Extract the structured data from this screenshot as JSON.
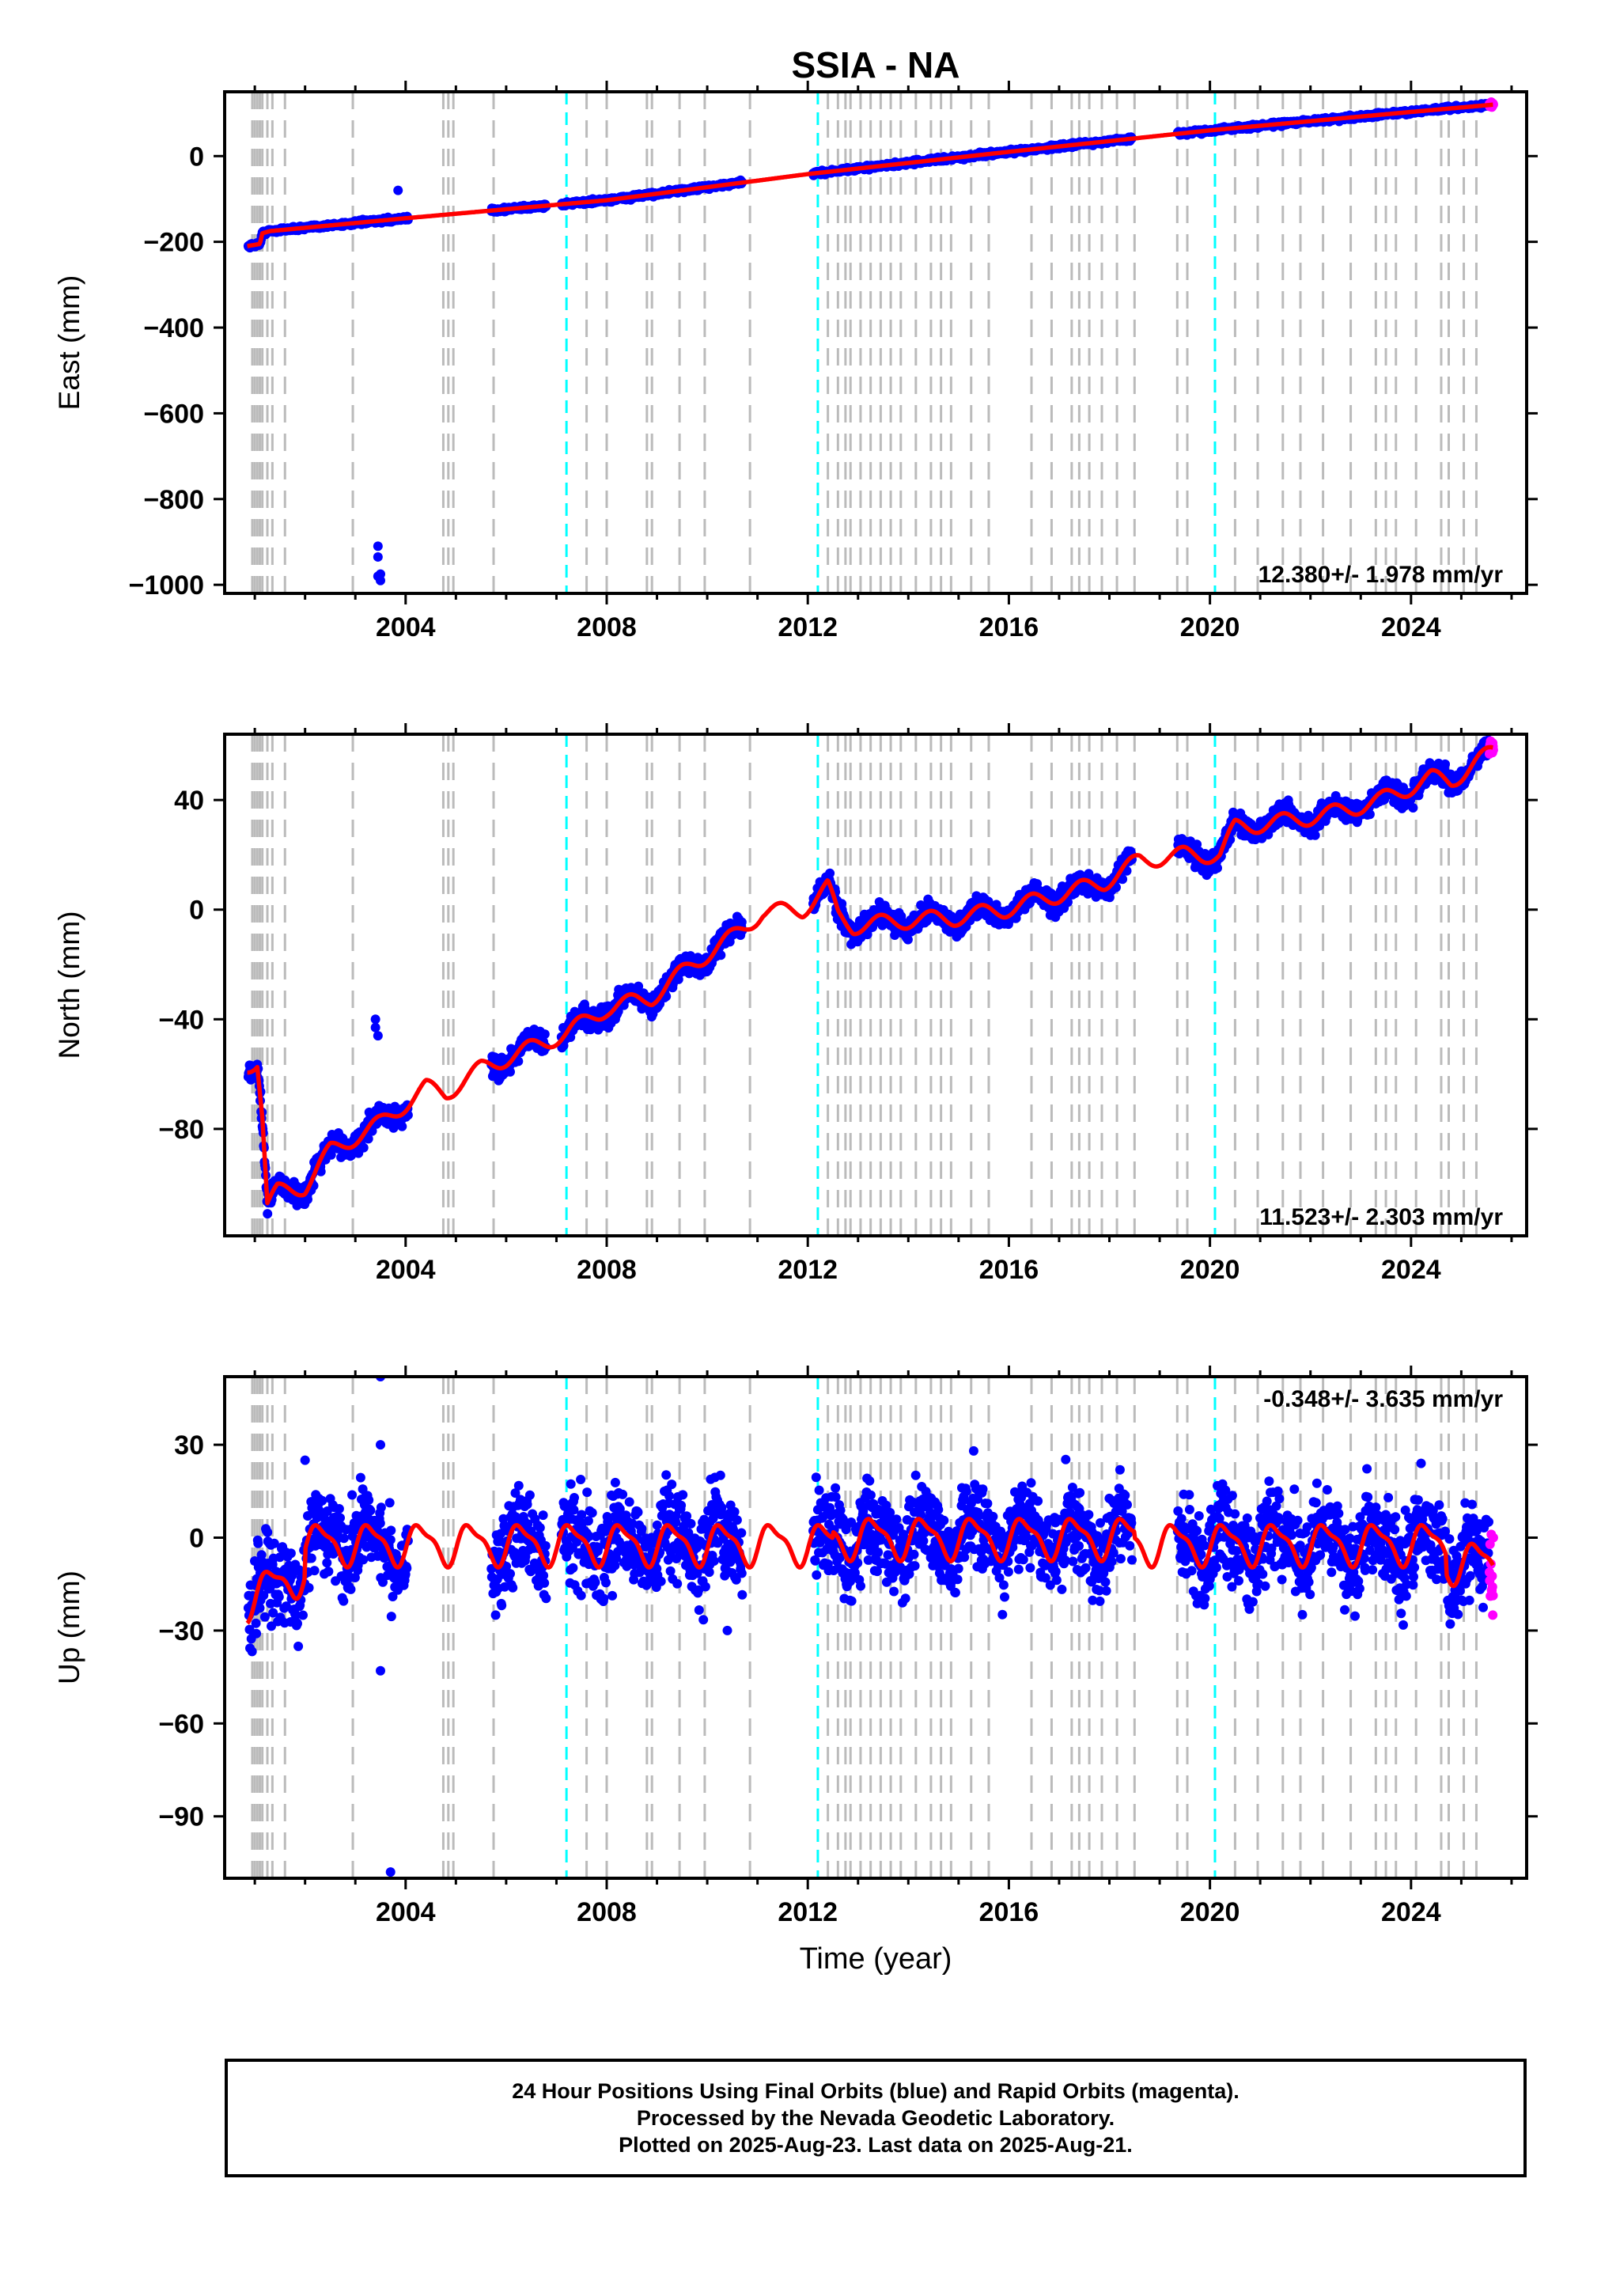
{
  "title": "SSIA - NA",
  "xlabel": "Time (year)",
  "x_ticks": [
    2004,
    2008,
    2012,
    2016,
    2020,
    2024
  ],
  "x_range": [
    2000.4,
    2026.3
  ],
  "colors": {
    "final": "#0000ff",
    "rapid": "#ff00ff",
    "model": "#ff0000",
    "antenna_change": "#00ffff",
    "equipment_change": "#bbbbbb"
  },
  "caption": {
    "line1": "24 Hour Positions Using Final Orbits (blue) and Rapid Orbits (magenta).",
    "line2": "Processed by the Nevada Geodetic Laboratory.",
    "line3": "Plotted on 2025-Aug-23. Last data on 2025-Aug-21."
  },
  "chart_data": [
    {
      "type": "scatter",
      "component": "east",
      "title": "SSIA - NA",
      "xlabel": "",
      "ylabel": "East (mm)",
      "ylim": [
        -1020,
        150
      ],
      "y_ticks": [
        0,
        -200,
        -400,
        -600,
        -800,
        -1000
      ],
      "y_tick_labels": [
        "0",
        "−200",
        "−400",
        "−600",
        "−800",
        "−1000"
      ],
      "rate_label": "12.380+/- 1.978 mm/yr",
      "rate_position": "bottom-right",
      "series": [
        {
          "name": "Final Orbits",
          "color": "#0000ff",
          "x_range": [
            2000.9,
            2025.55
          ],
          "points": [
            [
              2003.45,
              -910
            ],
            [
              2003.45,
              -935
            ],
            [
              2003.45,
              -980
            ],
            [
              2003.5,
              -990
            ],
            [
              2003.5,
              -975
            ],
            [
              2003.85,
              -80
            ]
          ]
        },
        {
          "name": "Rapid Orbits",
          "color": "#ff00ff",
          "x_range": [
            2025.55,
            2025.64
          ]
        },
        {
          "name": "Model",
          "color": "#ff0000",
          "x": [
            2000.85,
            2001.1,
            2001.15,
            2001.3,
            2004,
            2008,
            2012,
            2016,
            2020,
            2024,
            2025.64
          ],
          "y": [
            -210,
            -205,
            -180,
            -175,
            -145,
            -103,
            -42,
            10,
            60,
            103,
            120
          ]
        }
      ]
    },
    {
      "type": "scatter",
      "component": "north",
      "ylabel": "North (mm)",
      "ylim": [
        -119,
        64
      ],
      "y_ticks": [
        40,
        0,
        -40,
        -80
      ],
      "y_tick_labels": [
        "40",
        "0",
        "−40",
        "−80"
      ],
      "rate_label": "11.523+/- 2.303 mm/yr",
      "rate_position": "bottom-right",
      "series": [
        {
          "name": "Final Orbits",
          "color": "#0000ff",
          "points": [
            [
              2003.4,
              -40
            ],
            [
              2003.4,
              -43
            ],
            [
              2003.45,
              -46
            ]
          ]
        },
        {
          "name": "Rapid Orbits",
          "color": "#ff00ff",
          "x_range": [
            2025.55,
            2025.64
          ]
        },
        {
          "name": "Model",
          "color": "#ff0000",
          "x": [
            2000.85,
            2001.05,
            2001.15,
            2001.25,
            2001.45,
            2002.0,
            2002.5,
            2003.5,
            2004.4,
            2004.8,
            2005.5,
            2006.3,
            2007.2,
            2008.0,
            2008.9,
            2009.7,
            2010.5,
            2011.1,
            2011.9,
            2012.4,
            2012.6,
            2012.9,
            2013.9,
            2014.9,
            2015.9,
            2016.9,
            2017.9,
            2018.6,
            2019.5,
            2020.2,
            2020.5,
            2021.4,
            2022.4,
            2023.4,
            2024.4,
            2024.8,
            2025.64
          ],
          "y": [
            -57,
            -55,
            -75,
            -108,
            -103,
            -101,
            -88,
            -78,
            -65,
            -67,
            -58,
            -52,
            -45,
            -36,
            -32,
            -20,
            -10,
            -1,
            0,
            8,
            -2,
            -6,
            -4,
            -3,
            0,
            5,
            10,
            18,
            20,
            20,
            30,
            32,
            35,
            40,
            48,
            47,
            58
          ]
        }
      ]
    },
    {
      "type": "scatter",
      "component": "up",
      "ylabel": "Up (mm)",
      "ylim": [
        -110,
        52
      ],
      "y_ticks": [
        30,
        0,
        -30,
        -60,
        -90
      ],
      "y_tick_labels": [
        "30",
        "0",
        "−30",
        "−60",
        "−90"
      ],
      "rate_label": "-0.348+/- 3.635 mm/yr",
      "rate_position": "top-right",
      "series": [
        {
          "name": "Final Orbits",
          "color": "#0000ff",
          "points": [
            [
              2003.5,
              52
            ],
            [
              2003.5,
              30
            ],
            [
              2003.5,
              -43
            ],
            [
              2003.7,
              -108
            ],
            [
              2002.0,
              25
            ],
            [
              2015.3,
              28
            ],
            [
              2024.2,
              24
            ],
            [
              2010.4,
              -30
            ]
          ]
        },
        {
          "name": "Rapid Orbits",
          "color": "#ff00ff",
          "x_range": [
            2025.55,
            2025.64
          ]
        },
        {
          "name": "Model",
          "color": "#ff0000"
        }
      ]
    }
  ],
  "markers": {
    "antenna_changes": [
      2007.2,
      2012.2,
      2020.1
    ],
    "equipment_changes": [
      2000.95,
      2001.0,
      2001.05,
      2001.1,
      2001.15,
      2001.25,
      2001.35,
      2001.6,
      2002.95,
      2004.75,
      2004.85,
      2004.95,
      2005.75,
      2007.6,
      2008.0,
      2008.8,
      2008.9,
      2009.45,
      2009.95,
      2010.85,
      2012.4,
      2012.6,
      2012.75,
      2012.85,
      2013.05,
      2013.25,
      2013.45,
      2013.65,
      2013.85,
      2014.15,
      2014.45,
      2014.65,
      2014.85,
      2015.25,
      2015.6,
      2016.45,
      2016.85,
      2017.25,
      2017.4,
      2017.6,
      2017.85,
      2018.15,
      2018.5,
      2019.35,
      2019.55,
      2020.5,
      2020.95,
      2021.45,
      2021.8,
      2022.25,
      2022.8,
      2023.3,
      2023.5,
      2023.7,
      2024.1,
      2024.6,
      2024.75,
      2025.05,
      2025.3
    ]
  }
}
